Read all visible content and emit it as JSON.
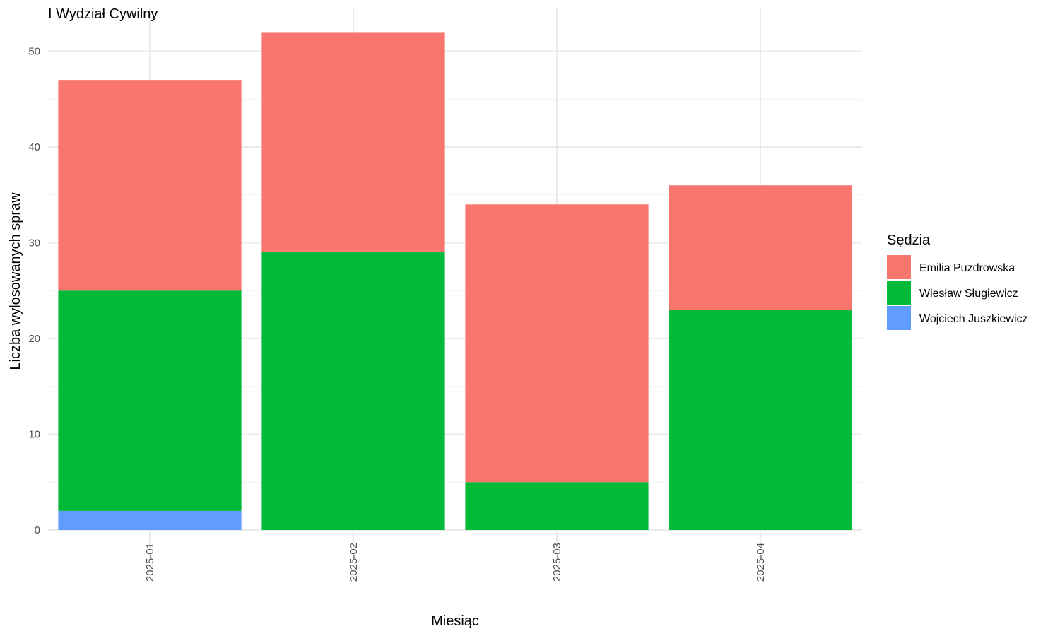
{
  "chart_data": {
    "type": "bar",
    "stacked": true,
    "title": "I Wydział Cywilny",
    "xlabel": "Miesiąc",
    "ylabel": "Liczba wylosowanych spraw",
    "categories": [
      "2025-01",
      "2025-02",
      "2025-03",
      "2025-04"
    ],
    "ylim": [
      0,
      54
    ],
    "yticks": [
      0,
      10,
      20,
      30,
      40,
      50
    ],
    "grid": true,
    "legend": {
      "title": "Sędzia",
      "position": "right",
      "entries": [
        "Emilia Puzdrowska",
        "Wiesław Sługiewicz",
        "Wojciech Juszkiewicz"
      ]
    },
    "series": [
      {
        "name": "Wojciech Juszkiewicz",
        "values": [
          2,
          0,
          0,
          0
        ],
        "color": "#619CFF"
      },
      {
        "name": "Wiesław Sługiewicz",
        "values": [
          23,
          29,
          5,
          23
        ],
        "color": "#00BA38"
      },
      {
        "name": "Emilia Puzdrowska",
        "values": [
          22,
          23,
          29,
          13
        ],
        "color": "#F8766D"
      }
    ]
  }
}
